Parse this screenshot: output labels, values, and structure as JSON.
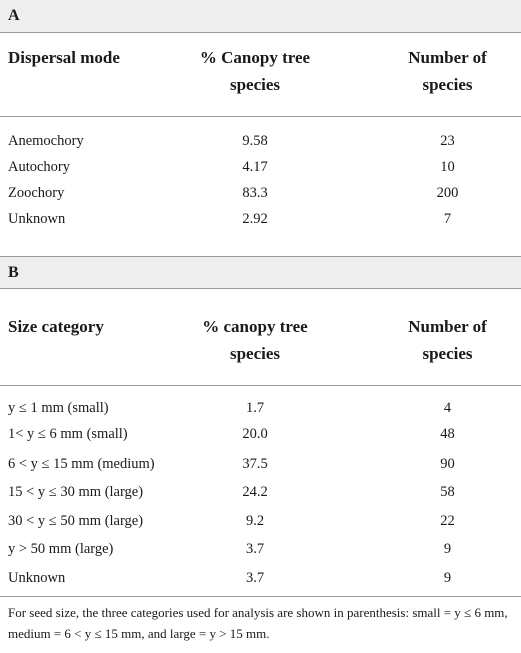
{
  "section_a": {
    "label": "A",
    "headers": [
      "Dispersal mode",
      "% Canopy tree species",
      "Number of species"
    ],
    "rows": [
      [
        "Anemochory",
        "9.58",
        "23"
      ],
      [
        "Autochory",
        "4.17",
        "10"
      ],
      [
        "Zoochory",
        "83.3",
        "200"
      ],
      [
        "Unknown",
        "2.92",
        "7"
      ]
    ]
  },
  "section_b": {
    "label": "B",
    "headers": [
      "Size category",
      "% canopy tree species",
      "Number of species"
    ],
    "rows": [
      [
        "y ≤ 1 mm (small)",
        "1.7",
        "4"
      ],
      [
        "1< y ≤ 6 mm (small)",
        "20.0",
        "48"
      ],
      [
        "6 < y ≤ 15 mm (medium)",
        "37.5",
        "90"
      ],
      [
        "15 < y ≤ 30 mm (large)",
        "24.2",
        "58"
      ],
      [
        "30 < y ≤ 50 mm (large)",
        "9.2",
        "22"
      ],
      [
        "y > 50 mm (large)",
        "3.7",
        "9"
      ],
      [
        "Unknown",
        "3.7",
        "9"
      ]
    ]
  },
  "footnote": "For seed size, the three categories used for analysis are shown in parenthesis: small = y ≤ 6 mm, medium = 6 < y ≤ 15 mm, and large = y > 15 mm."
}
